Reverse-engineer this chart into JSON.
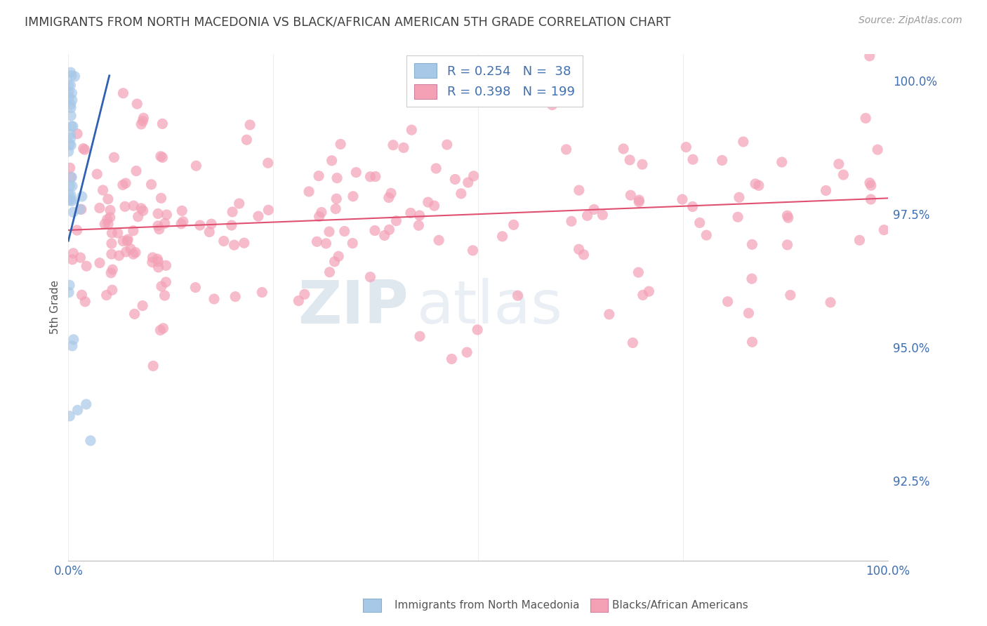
{
  "title": "IMMIGRANTS FROM NORTH MACEDONIA VS BLACK/AFRICAN AMERICAN 5TH GRADE CORRELATION CHART",
  "source": "Source: ZipAtlas.com",
  "ylabel": "5th Grade",
  "legend_r1": "R = 0.254",
  "legend_n1": "N =  38",
  "legend_r2": "R = 0.398",
  "legend_n2": "N = 199",
  "legend_label1": "Immigrants from North Macedonia",
  "legend_label2": "Blacks/African Americans",
  "ytick_labels": [
    "100.0%",
    "97.5%",
    "95.0%",
    "92.5%"
  ],
  "ytick_values": [
    1.0,
    0.975,
    0.95,
    0.925
  ],
  "color_blue": "#a8c8e8",
  "color_pink": "#f4a0b5",
  "color_blue_line": "#3060b0",
  "color_pink_line": "#e05070",
  "watermark_zip": "ZIP",
  "watermark_atlas": "atlas",
  "xlim": [
    0.0,
    1.0
  ],
  "ylim": [
    0.91,
    1.005
  ],
  "fig_bg": "#ffffff",
  "grid_color": "#cccccc",
  "title_color": "#404040",
  "source_color": "#999999",
  "pink_trend_start": 0.972,
  "pink_trend_end": 0.978,
  "blue_trend_x0": 0.0,
  "blue_trend_y0": 0.97,
  "blue_trend_x1": 0.05,
  "blue_trend_y1": 1.001
}
